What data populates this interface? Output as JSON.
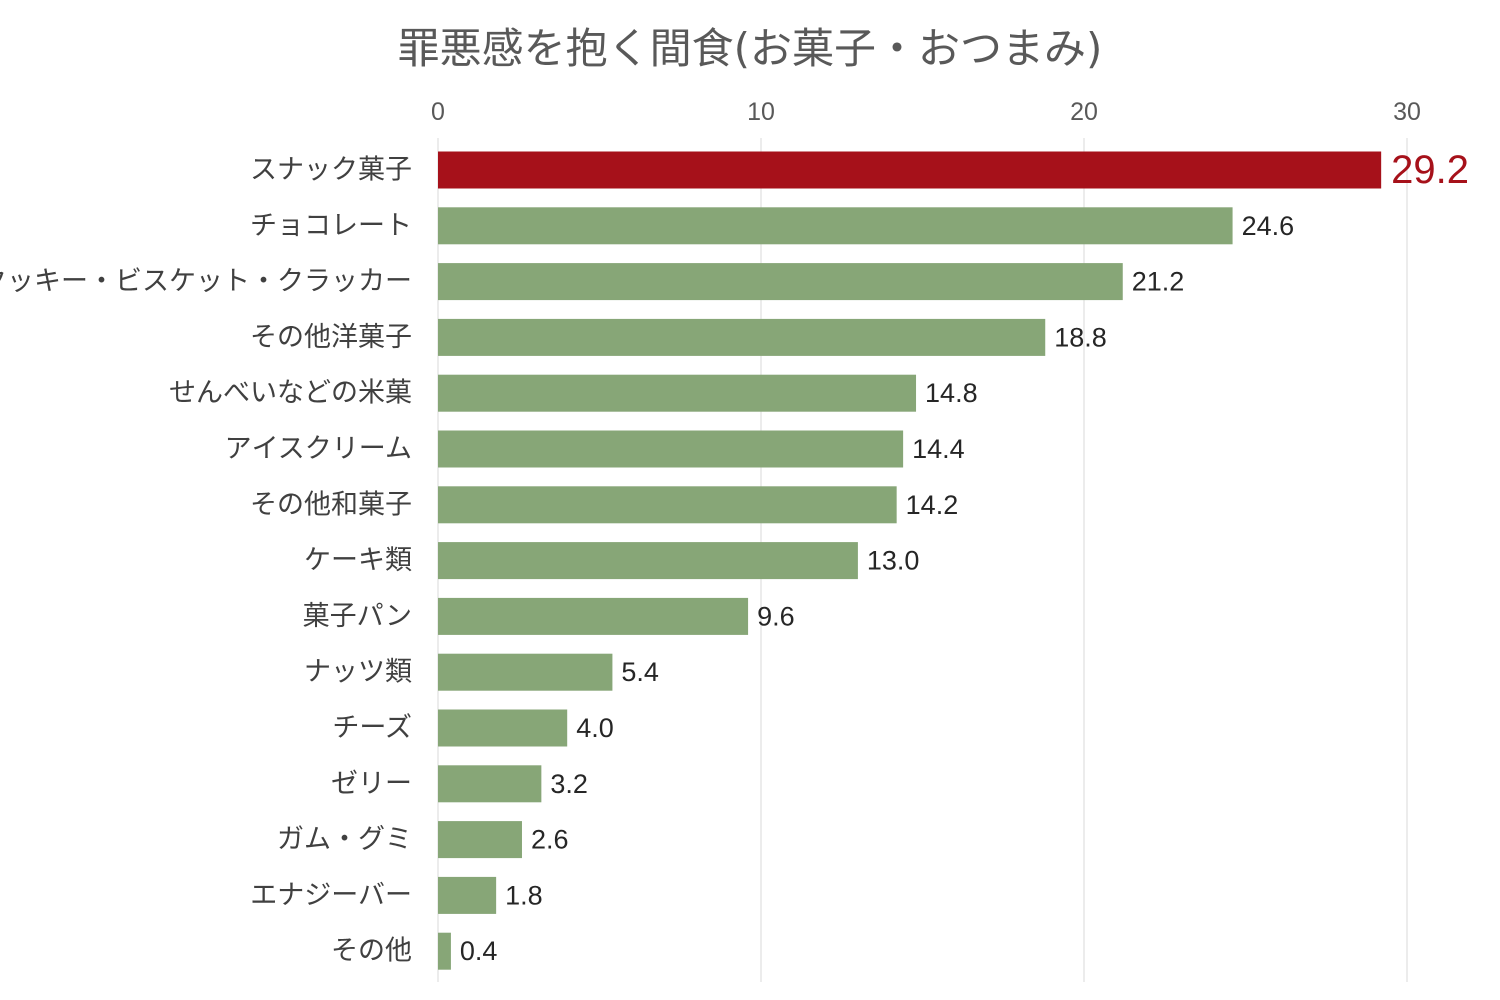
{
  "chart_data": {
    "type": "bar",
    "orientation": "horizontal",
    "title": "罪悪感を抱く間食(お菓子・おつまみ)",
    "xlabel": "",
    "ylabel": "",
    "xlim": [
      0,
      30
    ],
    "ticks": [
      0,
      10,
      20,
      30
    ],
    "tick_labels": [
      "0",
      "10",
      "20",
      "30"
    ],
    "axis_position": "top",
    "grid": true,
    "categories": [
      "スナック菓子",
      "チョコレート",
      "クッキー・ビスケット・クラッカー",
      "その他洋菓子",
      "せんべいなどの米菓",
      "アイスクリーム",
      "その他和菓子",
      "ケーキ類",
      "菓子パン",
      "ナッツ類",
      "チーズ",
      "ゼリー",
      "ガム・グミ",
      "エナジーバー",
      "その他"
    ],
    "values": [
      29.2,
      24.6,
      21.2,
      18.8,
      14.8,
      14.4,
      14.2,
      13.0,
      9.6,
      5.4,
      4.0,
      3.2,
      2.6,
      1.8,
      0.4
    ],
    "value_labels": [
      "29.2",
      "24.6",
      "21.2",
      "18.8",
      "14.8",
      "14.4",
      "14.2",
      "13.0",
      "9.6",
      "5.4",
      "4.0",
      "3.2",
      "2.6",
      "1.8",
      "0.4"
    ],
    "highlight_index": 0,
    "colors": {
      "bar": "#87a677",
      "highlight": "#a6111a"
    }
  }
}
